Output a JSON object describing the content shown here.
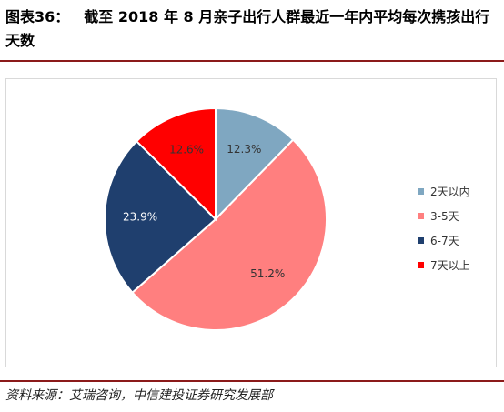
{
  "figure": {
    "title_prefix": "图表36：",
    "title": "截至 2018 年 8 月亲子出行人群最近一年内平均每次携孩出行天数",
    "source": "资料来源：艾瑞咨询，中信建投证券研究发展部"
  },
  "chart_data": {
    "type": "pie",
    "categories": [
      "2天以内",
      "3-5天",
      "6-7天",
      "7天以上"
    ],
    "values": [
      12.3,
      51.2,
      23.9,
      12.6
    ],
    "value_labels": [
      "12.3%",
      "51.2%",
      "23.9%",
      "12.6%"
    ],
    "colors": [
      "#7fa7c1",
      "#ff7f7f",
      "#1f3f6e",
      "#ff0000"
    ],
    "start_angle": "12 o'clock, clockwise",
    "legend_position": "right",
    "title": "",
    "label_color": "#333333",
    "label_color_dark": "#ffffff"
  }
}
